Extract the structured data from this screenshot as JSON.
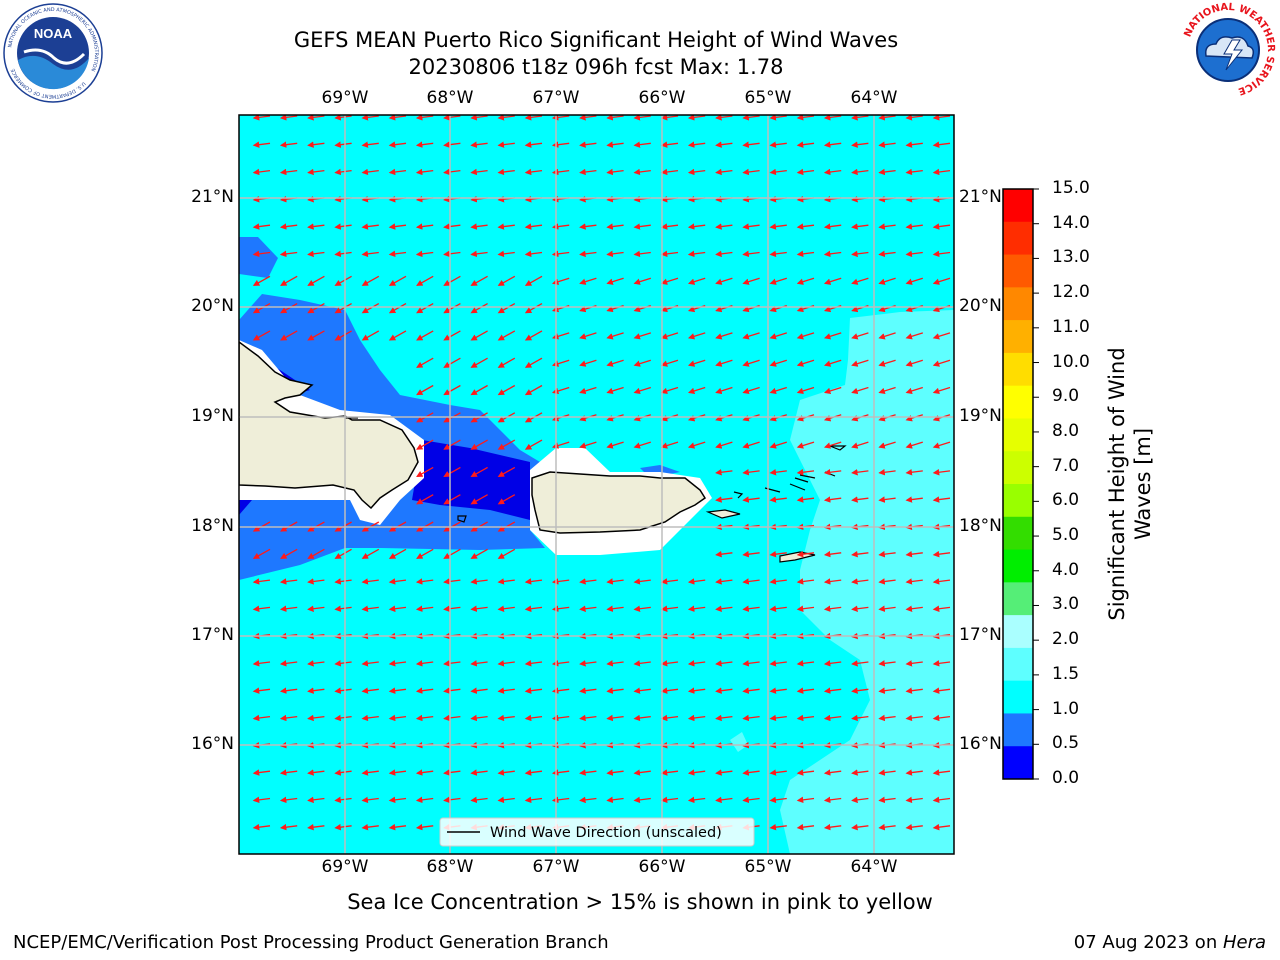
{
  "header": {
    "title_line1": "GEFS MEAN Puerto Rico Significant Height of Wind Waves",
    "title_line2": "20230806 t18z 096h fcst   Max: 1.78"
  },
  "logos": {
    "noaa_text": "NOAA",
    "noaa_ring_top": "NATIONAL OCEANIC AND ATMOSPHERIC ADMINISTRATION",
    "noaa_ring_bottom": "U.S. DEPARTMENT OF COMMERCE",
    "nws_ring": "NATIONAL WEATHER SERVICE"
  },
  "map": {
    "lon_labels": [
      "69°W",
      "68°W",
      "67°W",
      "66°W",
      "65°W",
      "64°W"
    ],
    "lat_labels": [
      "21°N",
      "20°N",
      "19°N",
      "18°N",
      "17°N",
      "16°N"
    ],
    "legend_label": "Wind Wave Direction (unscaled)",
    "colors": {
      "water": "#00ffff",
      "light": "#5effff",
      "blue": "#1e78ff",
      "deep": "#0000e6",
      "land": "#efeed9",
      "arrow": "#ff1a1a",
      "grid": "#bdbdbd"
    }
  },
  "colorbar": {
    "label_line1": "Significant Height of Wind",
    "label_line2": "Waves [m]",
    "ticks": [
      "15.0",
      "14.0",
      "13.0",
      "12.0",
      "11.0",
      "10.0",
      "9.0",
      "8.0",
      "7.0",
      "6.0",
      "5.0",
      "4.0",
      "3.0",
      "2.0",
      "1.5",
      "1.0",
      "0.5",
      "0.0"
    ],
    "colors": [
      "#ff0000",
      "#ff2d00",
      "#ff5a00",
      "#ff8800",
      "#ffb000",
      "#ffdd00",
      "#ffff00",
      "#e6ff00",
      "#ccff00",
      "#99ff00",
      "#33dd00",
      "#00ee00",
      "#55ee77",
      "#aaffff",
      "#5effff",
      "#00ffff",
      "#1e78ff",
      "#0000ff"
    ]
  },
  "footer": {
    "sea_ice_note": "Sea Ice Concentration > 15% is shown in pink to yellow",
    "left": "NCEP/EMC/Verification Post Processing Product Generation Branch",
    "right_prefix": "07 Aug 2023 on ",
    "right_host": "Hera"
  }
}
